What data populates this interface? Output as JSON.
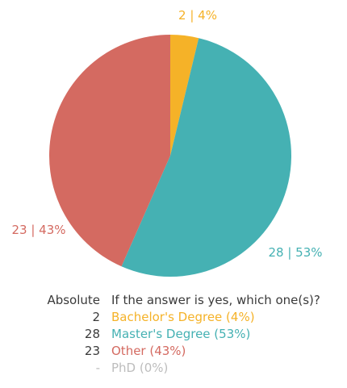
{
  "chart_data": {
    "type": "pie",
    "slices": [
      {
        "label": "Bachelor's Degree",
        "value": 2,
        "percent": 4,
        "color": "#F5B228",
        "slice_label": "2 | 4%",
        "legend_label": "Bachelor's Degree (4%)"
      },
      {
        "label": "Master's Degree",
        "value": 28,
        "percent": 53,
        "color": "#45B1B3",
        "slice_label": "28 | 53%",
        "legend_label": "Master's Degree (53%)"
      },
      {
        "label": "Other",
        "value": 23,
        "percent": 43,
        "color": "#D46A61",
        "slice_label": "23 | 43%",
        "legend_label": "Other (43%)"
      },
      {
        "label": "PhD",
        "value": 0,
        "percent": 0,
        "color": "#BDBDBD",
        "slice_label": "",
        "legend_label": "PhD (0%)"
      }
    ]
  },
  "legend": {
    "absolute_header": "Absolute",
    "question": "If the answer is yes, which one(s)?",
    "rows": [
      {
        "count": "2",
        "label": "Bachelor's Degree (4%)",
        "color": "#F5B228"
      },
      {
        "count": "28",
        "label": "Master's Degree (53%)",
        "color": "#45B1B3"
      },
      {
        "count": "23",
        "label": "Other (43%)",
        "color": "#D46A61"
      },
      {
        "count": "-",
        "label": "PhD (0%)",
        "color": "#BDBDBD"
      }
    ]
  }
}
